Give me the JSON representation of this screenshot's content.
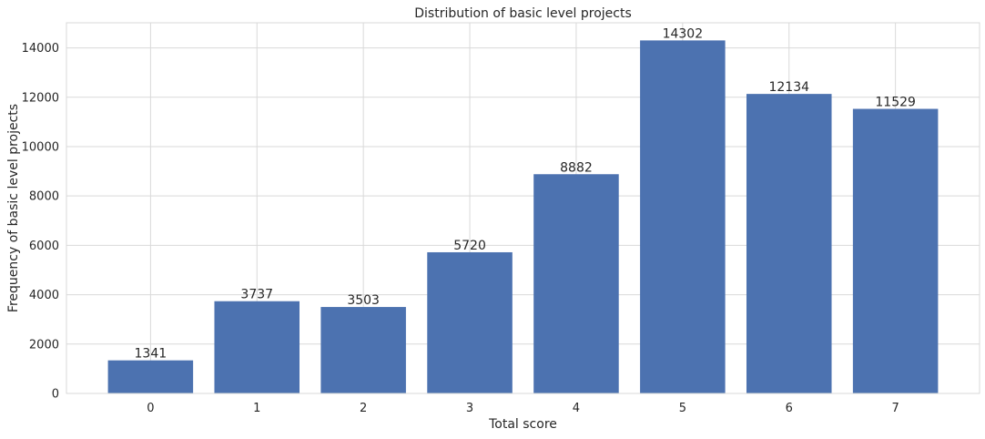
{
  "chart_data": {
    "type": "bar",
    "title": "Distribution of basic level projects",
    "xlabel": "Total score",
    "ylabel": "Frequency of basic level projects",
    "categories": [
      "0",
      "1",
      "2",
      "3",
      "4",
      "5",
      "6",
      "7"
    ],
    "values": [
      1341,
      3737,
      3503,
      5720,
      8882,
      14302,
      12134,
      11529
    ],
    "data_labels": [
      "1341",
      "3737",
      "3503",
      "5720",
      "8882",
      "14302",
      "12134",
      "11529"
    ],
    "yticks": [
      0,
      2000,
      4000,
      6000,
      8000,
      10000,
      12000,
      14000
    ],
    "ytick_labels": [
      "0",
      "2000",
      "4000",
      "6000",
      "8000",
      "10000",
      "12000",
      "14000"
    ],
    "ylim": [
      0,
      15017
    ],
    "grid": true,
    "bar_color": "#4c72b0",
    "grid_color": "#d9d9d9"
  }
}
